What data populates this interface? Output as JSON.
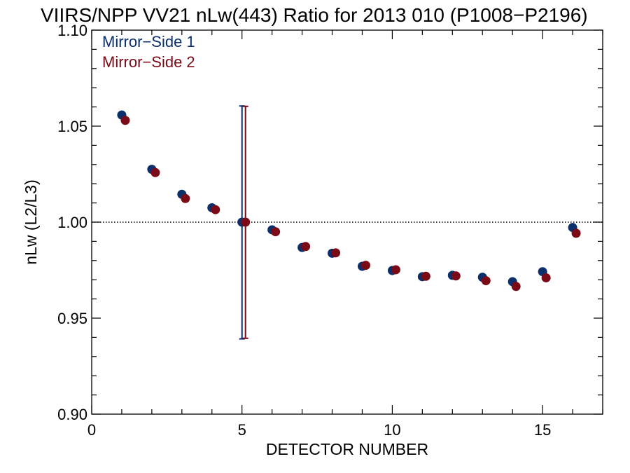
{
  "chart_data": {
    "type": "scatter",
    "title": "VIIRS/NPP VV21 nLw(443) Ratio for 2013 010 (P1008−P2196)",
    "xlabel": "DETECTOR NUMBER",
    "ylabel": "nLw (L2/L3)",
    "xlim": [
      0,
      17
    ],
    "ylim": [
      0.9,
      1.1
    ],
    "x_ticks": [
      0,
      5,
      10,
      15
    ],
    "x_tick_labels": [
      "0",
      "5",
      "10",
      "15"
    ],
    "y_ticks": [
      0.9,
      0.95,
      1.0,
      1.05,
      1.1
    ],
    "y_tick_labels": [
      "0.90",
      "0.95",
      "1.00",
      "1.05",
      "1.10"
    ],
    "reference_line": 1.0,
    "legend_position": "top-left",
    "series": [
      {
        "name": "Mirror−Side 1",
        "color": "#0b2f6b",
        "x": [
          1,
          2,
          3,
          4,
          5,
          6,
          7,
          8,
          9,
          10,
          11,
          12,
          13,
          14,
          15,
          16
        ],
        "values": [
          1.0558,
          1.0275,
          1.0145,
          1.0075,
          1.0,
          0.996,
          0.9868,
          0.9838,
          0.977,
          0.9748,
          0.9716,
          0.9723,
          0.9713,
          0.969,
          0.9742,
          0.9972
        ],
        "error_bar": {
          "x": 5,
          "low": 0.9392,
          "high": 1.0605
        }
      },
      {
        "name": "Mirror−Side 2",
        "color": "#7a0a16",
        "x": [
          1,
          2,
          3,
          4,
          5,
          6,
          7,
          8,
          9,
          10,
          11,
          12,
          13,
          14,
          15,
          16
        ],
        "values": [
          1.053,
          1.0258,
          1.0123,
          1.0065,
          1.0,
          0.995,
          0.9873,
          0.984,
          0.9775,
          0.9752,
          0.9718,
          0.972,
          0.9695,
          0.9665,
          0.971,
          0.9942
        ],
        "error_bar": {
          "x": 5,
          "low": 0.9395,
          "high": 1.0603
        }
      }
    ]
  }
}
